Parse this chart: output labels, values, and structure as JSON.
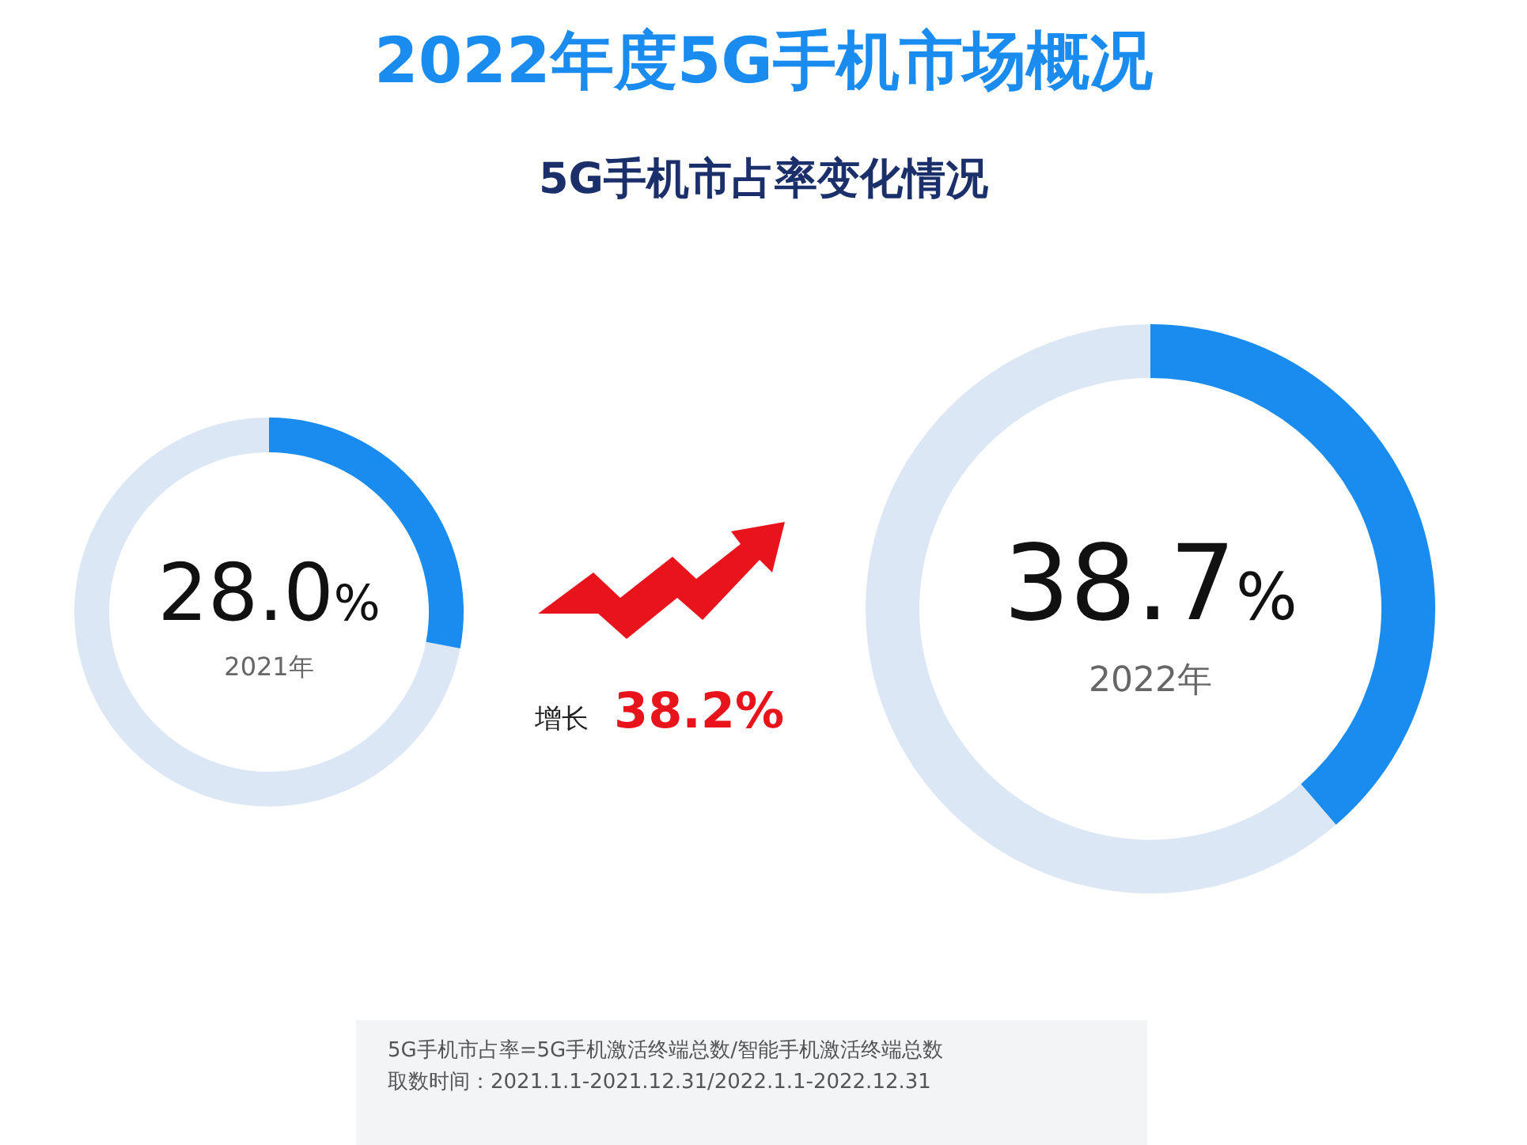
{
  "chart_data": [
    {
      "type": "donut",
      "title": "2022年度5G手机市场概况",
      "subtitle": "5G手机市占率变化情况",
      "xlabel": "2021年",
      "categories": [
        null,
        null
      ],
      "values": [
        28.0,
        72.0
      ],
      "colors": [
        "#1a8cf0",
        "#dce7f5"
      ],
      "value_labels": [
        "28.0%",
        null
      ],
      "annotations": [
        "增长",
        "38.2%"
      ]
    },
    {
      "type": "donut",
      "xlabel": "2022年",
      "categories": [
        null,
        null
      ],
      "values": [
        38.7,
        61.3
      ],
      "colors": [
        "#1a8cf0",
        "#dce7f5"
      ],
      "value_labels": [
        "38.7%",
        null
      ],
      "annotations": [
        "5G手机市占率=5G手机激活终端总数/智能手机激活终端总数",
        "取数时间：2021.1.1-2021.12.31/2022.1.1-2022.12.31"
      ]
    }
  ]
}
